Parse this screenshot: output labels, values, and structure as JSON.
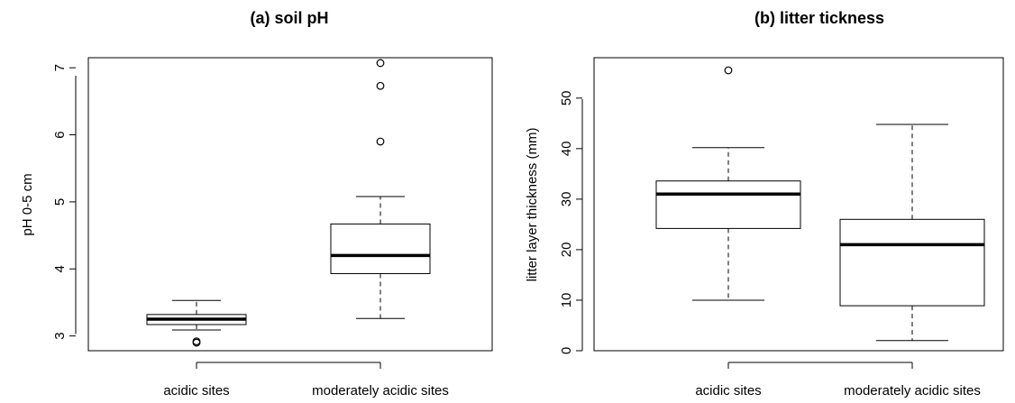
{
  "chart_data": [
    {
      "type": "box",
      "title": "(a) soil pH",
      "ylabel": "pH 0-5 cm",
      "xlabel": "",
      "ylim": [
        2.78,
        7.15
      ],
      "yticks": [
        3,
        4,
        5,
        6,
        7
      ],
      "categories": [
        "acidic sites",
        "moderately acidic sites"
      ],
      "boxes": [
        {
          "category": "acidic sites",
          "whisker_low": 3.09,
          "q1": 3.17,
          "median": 3.25,
          "q3": 3.32,
          "whisker_high": 3.53,
          "outliers": [
            2.9,
            2.92
          ]
        },
        {
          "category": "moderately acidic sites",
          "whisker_low": 3.26,
          "q1": 3.93,
          "median": 4.2,
          "q3": 4.67,
          "whisker_high": 5.08,
          "outliers": [
            5.9,
            6.73,
            7.07
          ]
        }
      ]
    },
    {
      "type": "box",
      "title": "(b) litter tickness",
      "ylabel": "litter layer thickness (mm)",
      "xlabel": "",
      "ylim": [
        0,
        58
      ],
      "yticks": [
        0,
        10,
        20,
        30,
        40,
        50
      ],
      "categories": [
        "acidic sites",
        "moderately acidic sites"
      ],
      "boxes": [
        {
          "category": "acidic sites",
          "whisker_low": 10,
          "q1": 24.2,
          "median": 31,
          "q3": 33.6,
          "whisker_high": 40.2,
          "outliers": [
            55.5
          ]
        },
        {
          "category": "moderately acidic sites",
          "whisker_low": 2,
          "q1": 8.9,
          "median": 21,
          "q3": 26,
          "whisker_high": 44.8,
          "outliers": []
        }
      ]
    }
  ]
}
